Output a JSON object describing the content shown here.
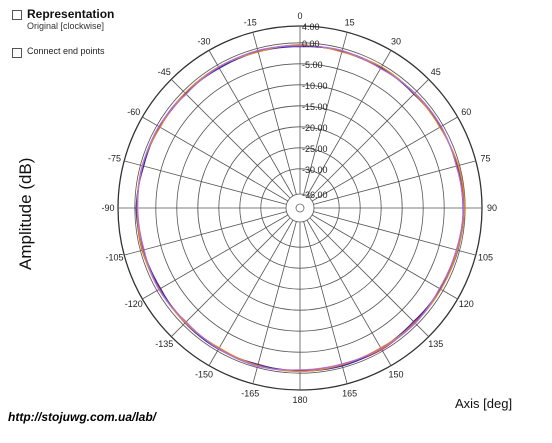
{
  "panel": {
    "representation_label": "Representation",
    "representation_sub": "Original [clockwise]",
    "connect_label": "Connect end points"
  },
  "footer": {
    "url": "http://stojuwg.com.ua/lab/"
  },
  "chart_data": {
    "type": "polar",
    "title": "",
    "ylabel": "Amplitude (dB)",
    "xlabel": "Axis  [deg]",
    "direction": "clockwise",
    "zero_position": "top",
    "angle_ticks": [
      0,
      15,
      30,
      45,
      60,
      75,
      90,
      105,
      120,
      135,
      150,
      165,
      180,
      -165,
      -150,
      -135,
      -120,
      -105,
      -90,
      -75,
      -60,
      -45,
      -30,
      -15
    ],
    "angle_labels": [
      "0",
      "15",
      "30",
      "45",
      "60",
      "75",
      "90",
      "105",
      "120",
      "135",
      "150",
      "165",
      "180",
      "-165",
      "-150",
      "-135",
      "-120",
      "-105",
      "-90",
      "-75",
      "-60",
      "-45",
      "-30",
      "-15"
    ],
    "radial_ticks": [
      4,
      0,
      -5,
      -10,
      -15,
      -20,
      -25,
      -30,
      -36
    ],
    "radial_labels": [
      "4.00",
      "0.00",
      "-5.00",
      "-10.00",
      "-15.00",
      "-20.00",
      "-25.00",
      "-30.00",
      "-36.00"
    ],
    "rlim": [
      -36,
      4
    ],
    "grid": true,
    "series_colors": [
      "#c0392b",
      "#3a2a9c",
      "#e08a2a",
      "#b070e0"
    ],
    "series": [
      {
        "angles": [
          0,
          15,
          30,
          45,
          60,
          75,
          90,
          105,
          120,
          135,
          150,
          165,
          180,
          -165,
          -150,
          -135,
          -120,
          -105,
          -90,
          -75,
          -60,
          -45,
          -30,
          -15
        ],
        "values": [
          -0.6,
          -0.8,
          -0.9,
          -0.7,
          -0.8,
          -0.5,
          -0.3,
          -0.6,
          -0.9,
          -0.8,
          -0.4,
          -0.6,
          -0.7,
          -0.6,
          -0.7,
          -0.9,
          -0.8,
          -0.4,
          -0.5,
          -0.6,
          -0.8,
          -0.9,
          -0.7,
          -0.6
        ]
      },
      {
        "angles": [
          0,
          15,
          30,
          45,
          60,
          75,
          90,
          105,
          120,
          135,
          150,
          165,
          180,
          -165,
          -150,
          -135,
          -120,
          -105,
          -90,
          -75,
          -60,
          -45,
          -30,
          -15
        ],
        "values": [
          -0.9,
          -0.6,
          -0.7,
          -1.0,
          -0.6,
          -0.7,
          -0.5,
          -0.4,
          -0.7,
          -1.1,
          -0.7,
          -0.4,
          -0.5,
          -0.8,
          -0.5,
          -0.6,
          -1.0,
          -0.7,
          -0.3,
          -0.8,
          -0.6,
          -0.7,
          -0.9,
          -0.8
        ]
      },
      {
        "angles": [
          0,
          15,
          30,
          45,
          60,
          75,
          90,
          105,
          120,
          135,
          150,
          165,
          180,
          -165,
          -150,
          -135,
          -120,
          -105,
          -90,
          -75,
          -60,
          -45,
          -30,
          -15
        ],
        "values": [
          -0.4,
          -0.9,
          -0.5,
          -0.8,
          -0.9,
          -0.3,
          -0.1,
          -0.5,
          -0.6,
          -0.6,
          -0.9,
          -0.7,
          -0.4,
          -0.5,
          -0.9,
          -0.7,
          -0.6,
          -0.5,
          -0.6,
          -0.4,
          -0.9,
          -0.6,
          -0.5,
          -0.9
        ]
      },
      {
        "angles": [
          0,
          15,
          30,
          45,
          60,
          75,
          90,
          105,
          120,
          135,
          150,
          165,
          180,
          -165,
          -150,
          -135,
          -120,
          -105,
          -90,
          -75,
          -60,
          -45,
          -30,
          -15
        ],
        "values": [
          -0.7,
          -0.5,
          -1.0,
          -0.6,
          -0.5,
          -0.8,
          -0.4,
          -0.8,
          -1.0,
          -0.5,
          -0.6,
          -0.9,
          -0.8,
          -0.3,
          -0.6,
          -1.0,
          -0.5,
          -0.9,
          -0.7,
          -0.5,
          -0.5,
          -1.0,
          -0.6,
          -0.5
        ]
      }
    ]
  }
}
